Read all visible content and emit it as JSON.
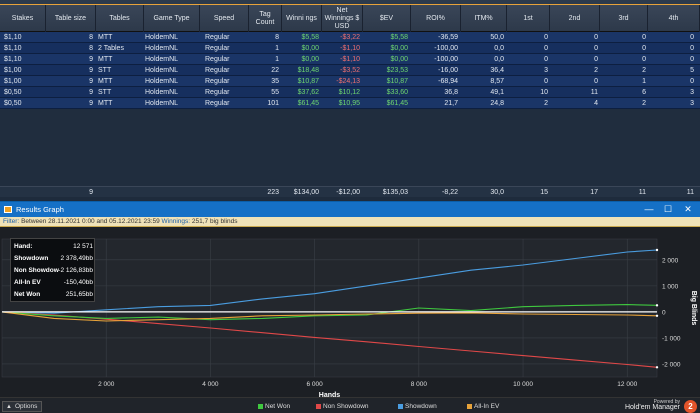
{
  "columns": [
    "Stakes",
    "Table size",
    "Tables",
    "Game Type",
    "Speed",
    "Tag Count",
    "Winni ngs",
    "Net Winnings $ USD",
    "$EV",
    "ROI%",
    "ITM%",
    "1st",
    "2nd",
    "3rd",
    "4th"
  ],
  "rows": [
    [
      "$1,10",
      "8",
      "MTT",
      "HoldemNL",
      "Regular",
      "8",
      "$5,58",
      "-$3,22",
      "$5,58",
      "-36,59",
      "50,0",
      "0",
      "0",
      "0",
      "0"
    ],
    [
      "$1,10",
      "8",
      "2 Tables",
      "HoldemNL",
      "Regular",
      "1",
      "$0,00",
      "-$1,10",
      "$0,00",
      "-100,00",
      "0,0",
      "0",
      "0",
      "0",
      "0"
    ],
    [
      "$1,10",
      "9",
      "MTT",
      "HoldemNL",
      "Regular",
      "1",
      "$0,00",
      "-$1,10",
      "$0,00",
      "-100,00",
      "0,0",
      "0",
      "0",
      "0",
      "0"
    ],
    [
      "$1,00",
      "9",
      "STT",
      "HoldemNL",
      "Regular",
      "22",
      "$18,48",
      "-$3,52",
      "$23,53",
      "-16,00",
      "36,4",
      "3",
      "2",
      "2",
      "5"
    ],
    [
      "$1,00",
      "9",
      "MTT",
      "HoldemNL",
      "Regular",
      "35",
      "$10,87",
      "-$24,13",
      "$10,87",
      "-68,94",
      "8,57",
      "0",
      "0",
      "1",
      "0"
    ],
    [
      "$0,50",
      "9",
      "STT",
      "HoldemNL",
      "Regular",
      "55",
      "$37,62",
      "$10,12",
      "$33,60",
      "36,8",
      "49,1",
      "10",
      "11",
      "6",
      "3"
    ],
    [
      "$0,50",
      "9",
      "MTT",
      "HoldemNL",
      "Regular",
      "101",
      "$61,45",
      "$10,95",
      "$61,45",
      "21,7",
      "24,8",
      "2",
      "4",
      "2",
      "3"
    ]
  ],
  "totals": [
    "",
    "9",
    "",
    "",
    "",
    "223",
    "$134,00",
    "-$12,00",
    "$135,03",
    "-8,22",
    "30,0",
    "15",
    "17",
    "11",
    "11"
  ],
  "window": {
    "title": "Results Graph",
    "minimize": "—",
    "maximize": "☐",
    "close": "✕"
  },
  "filter": {
    "label": "Filter:",
    "text": "Between 28.11.2021 0:00 and 05.12.2021 23:59",
    "winnings_label": "Winnings:",
    "winnings_value": "251,7 big blinds"
  },
  "infobox": [
    {
      "k": "Hand:",
      "v": "12 571"
    },
    {
      "k": "Showdown",
      "v": "2 378,49bb"
    },
    {
      "k": "Non Showdow",
      "v": "-2 126,83bb"
    },
    {
      "k": "All-In EV",
      "v": "-150,40bb"
    },
    {
      "k": "Net Won",
      "v": "251,65bb"
    }
  ],
  "footer": {
    "options": "Options",
    "powered_by": "Powered by",
    "brand": "Hold'em Manager",
    "logo": "2"
  },
  "legend": [
    {
      "name": "Net Won",
      "color": "#3fc83f"
    },
    {
      "name": "Non Showdown",
      "color": "#e04848"
    },
    {
      "name": "Showdown",
      "color": "#4a9de0"
    },
    {
      "name": "All-In EV",
      "color": "#e8a33a"
    }
  ],
  "chart_data": {
    "type": "line",
    "xlabel": "Hands",
    "ylabel": "Big Blinds",
    "xlim": [
      0,
      12571
    ],
    "ylim": [
      -2500,
      2800
    ],
    "xticks": [
      2000,
      4000,
      6000,
      8000,
      10000,
      12000
    ],
    "xtick_labels": [
      "2 000",
      "4 000",
      "6 000",
      "8 000",
      "10 000",
      "12 000"
    ],
    "yticks": [
      2000,
      1000,
      0,
      -1000,
      -2000
    ],
    "ytick_labels": [
      "2 000",
      "1 000",
      "0",
      "-1 000",
      "-2 000"
    ],
    "grid": true,
    "legend_position": "bottom",
    "series": [
      {
        "name": "Showdown",
        "color": "#4a9de0",
        "x": [
          0,
          1000,
          2000,
          3000,
          4000,
          5000,
          6000,
          7000,
          8000,
          9000,
          10000,
          11000,
          12000,
          12571
        ],
        "y": [
          0,
          -50,
          80,
          200,
          250,
          500,
          700,
          1000,
          1300,
          1600,
          1800,
          2050,
          2300,
          2378
        ]
      },
      {
        "name": "Non Showdown",
        "color": "#e04848",
        "x": [
          0,
          1000,
          2000,
          3000,
          4000,
          5000,
          6000,
          7000,
          8000,
          9000,
          10000,
          11000,
          12000,
          12571
        ],
        "y": [
          0,
          -120,
          -280,
          -450,
          -620,
          -800,
          -980,
          -1150,
          -1330,
          -1500,
          -1680,
          -1850,
          -2020,
          -2127
        ]
      },
      {
        "name": "Net Won",
        "color": "#3fc83f",
        "x": [
          0,
          1000,
          2000,
          3000,
          4000,
          5000,
          6000,
          7000,
          8000,
          9000,
          10000,
          11000,
          12000,
          12571
        ],
        "y": [
          0,
          -150,
          -250,
          -200,
          -300,
          -250,
          -150,
          -120,
          150,
          50,
          200,
          250,
          280,
          252
        ]
      },
      {
        "name": "All-In EV",
        "color": "#e8a33a",
        "x": [
          0,
          1000,
          2000,
          3000,
          4000,
          5000,
          6000,
          7000,
          8000,
          9000,
          10000,
          11000,
          12000,
          12571
        ],
        "y": [
          0,
          -250,
          -350,
          -300,
          -250,
          -150,
          -120,
          -80,
          -50,
          -40,
          -80,
          -100,
          -120,
          -150
        ]
      },
      {
        "name": "Zero line",
        "color": "#ffffff",
        "x": [
          0,
          12571
        ],
        "y": [
          0,
          0
        ]
      }
    ]
  }
}
